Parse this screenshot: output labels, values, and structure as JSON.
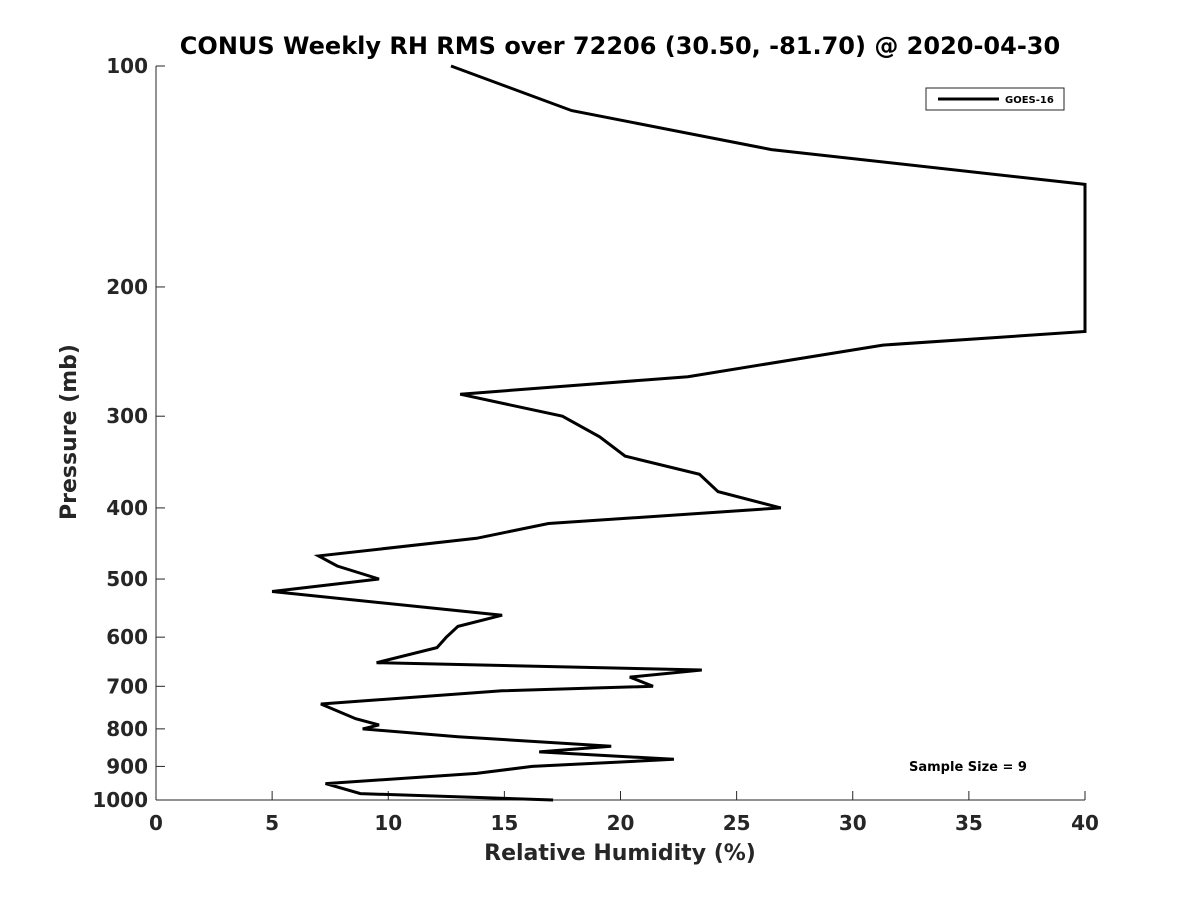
{
  "chart_data": {
    "type": "line",
    "title": "CONUS Weekly RH RMS over 72206 (30.50, -81.70) @ 2020-04-30",
    "xlabel": "Relative Humidity (%)",
    "ylabel": "Pressure (mb)",
    "xlim": [
      0,
      40
    ],
    "ylim": [
      100,
      1000
    ],
    "yscale": "log",
    "yreversed": true,
    "xticks": [
      0,
      5,
      10,
      15,
      20,
      25,
      30,
      35,
      40
    ],
    "yticks": [
      100,
      200,
      300,
      400,
      500,
      600,
      700,
      800,
      900,
      1000
    ],
    "legend": {
      "location": "top-right",
      "entries": [
        "GOES-16"
      ]
    },
    "annotation": "Sample Size = 9",
    "series": [
      {
        "name": "GOES-16",
        "color": "#000000",
        "points": [
          [
            12.7,
            100
          ],
          [
            17.9,
            115
          ],
          [
            26.5,
            130
          ],
          [
            40.0,
            145
          ],
          [
            40.0,
            230
          ],
          [
            31.3,
            240
          ],
          [
            22.9,
            265
          ],
          [
            13.1,
            280
          ],
          [
            17.5,
            300
          ],
          [
            19.1,
            320
          ],
          [
            20.2,
            340
          ],
          [
            23.4,
            360
          ],
          [
            24.2,
            380
          ],
          [
            26.9,
            400
          ],
          [
            16.9,
            420
          ],
          [
            13.8,
            440
          ],
          [
            7.0,
            465
          ],
          [
            7.8,
            480
          ],
          [
            9.6,
            500
          ],
          [
            5.0,
            520
          ],
          [
            14.9,
            560
          ],
          [
            13.0,
            580
          ],
          [
            12.5,
            600
          ],
          [
            12.1,
            620
          ],
          [
            9.5,
            650
          ],
          [
            23.5,
            665
          ],
          [
            20.4,
            680
          ],
          [
            21.4,
            700
          ],
          [
            14.9,
            710
          ],
          [
            7.1,
            740
          ],
          [
            8.6,
            775
          ],
          [
            9.6,
            790
          ],
          [
            8.9,
            800
          ],
          [
            13.0,
            820
          ],
          [
            19.6,
            845
          ],
          [
            16.5,
            860
          ],
          [
            22.3,
            880
          ],
          [
            16.2,
            900
          ],
          [
            13.8,
            920
          ],
          [
            7.3,
            950
          ],
          [
            8.8,
            980
          ],
          [
            17.1,
            1000
          ]
        ]
      }
    ]
  }
}
